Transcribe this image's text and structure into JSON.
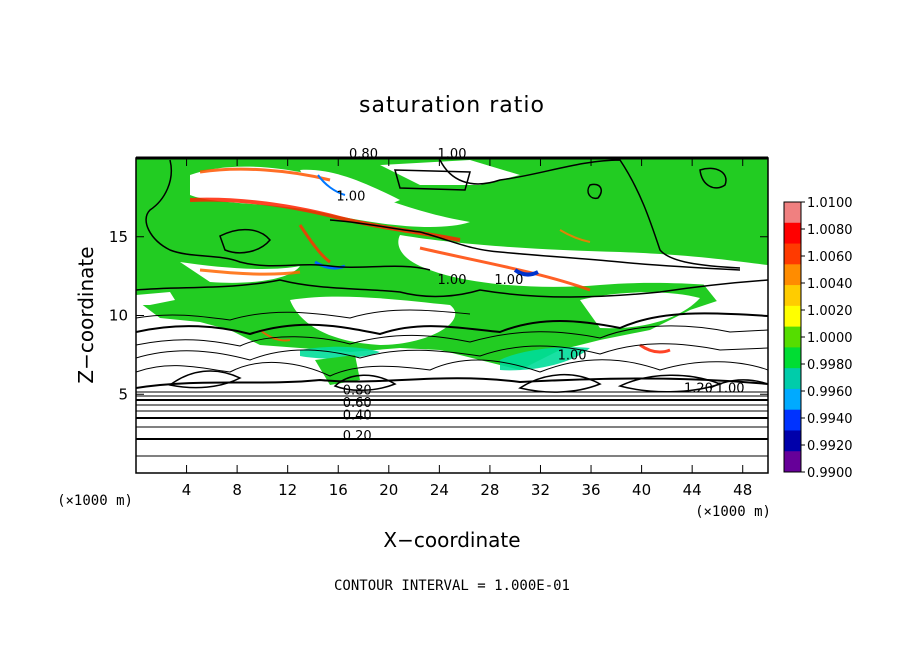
{
  "chart_data": {
    "type": "heatmap",
    "title": "saturation ratio",
    "xlabel": "X−coordinate",
    "ylabel": "Z−coordinate",
    "x_unit": "(×1000 m)",
    "y_unit": "(×1000 m)",
    "xlim": [
      0,
      50
    ],
    "ylim": [
      0,
      20
    ],
    "x_ticks": [
      4,
      8,
      12,
      16,
      20,
      24,
      28,
      32,
      36,
      40,
      44,
      48
    ],
    "y_ticks": [
      5,
      10,
      15
    ],
    "colorbar": {
      "min": 0.99,
      "max": 1.01,
      "ticks": [
        "1.0100",
        "1.0080",
        "1.0060",
        "1.0040",
        "1.0020",
        "1.0000",
        "0.9980",
        "0.9960",
        "0.9940",
        "0.9920",
        "0.9900"
      ],
      "colors": [
        "#f08080",
        "#ff0000",
        "#ff3a00",
        "#ff8c00",
        "#ffcc00",
        "#ffff00",
        "#55dd00",
        "#00dd33",
        "#00ccaa",
        "#00aaff",
        "#0033ff",
        "#0000aa",
        "#660099"
      ]
    },
    "contour_labels": [
      {
        "text": "0.20",
        "x": 17.5,
        "z": 2.1
      },
      {
        "text": "0.40",
        "x": 17.5,
        "z": 3.4
      },
      {
        "text": "0.60",
        "x": 17.5,
        "z": 4.2
      },
      {
        "text": "0.80",
        "x": 17.5,
        "z": 5.0
      },
      {
        "text": "0.80",
        "x": 18.0,
        "z": 20.0
      },
      {
        "text": "1.00",
        "x": 25.0,
        "z": 20.0
      },
      {
        "text": "1.00",
        "x": 17.0,
        "z": 17.3
      },
      {
        "text": "1.00",
        "x": 25.0,
        "z": 12.0
      },
      {
        "text": "1.00",
        "x": 29.5,
        "z": 12.0
      },
      {
        "text": "1.00",
        "x": 34.5,
        "z": 7.2
      },
      {
        "text": "1.20",
        "x": 44.5,
        "z": 5.1
      },
      {
        "text": "1.00",
        "x": 47.0,
        "z": 5.1
      }
    ],
    "contour_interval": "1.000E-01"
  },
  "footer": {
    "contour_interval": "CONTOUR INTERVAL = 1.000E-01"
  }
}
